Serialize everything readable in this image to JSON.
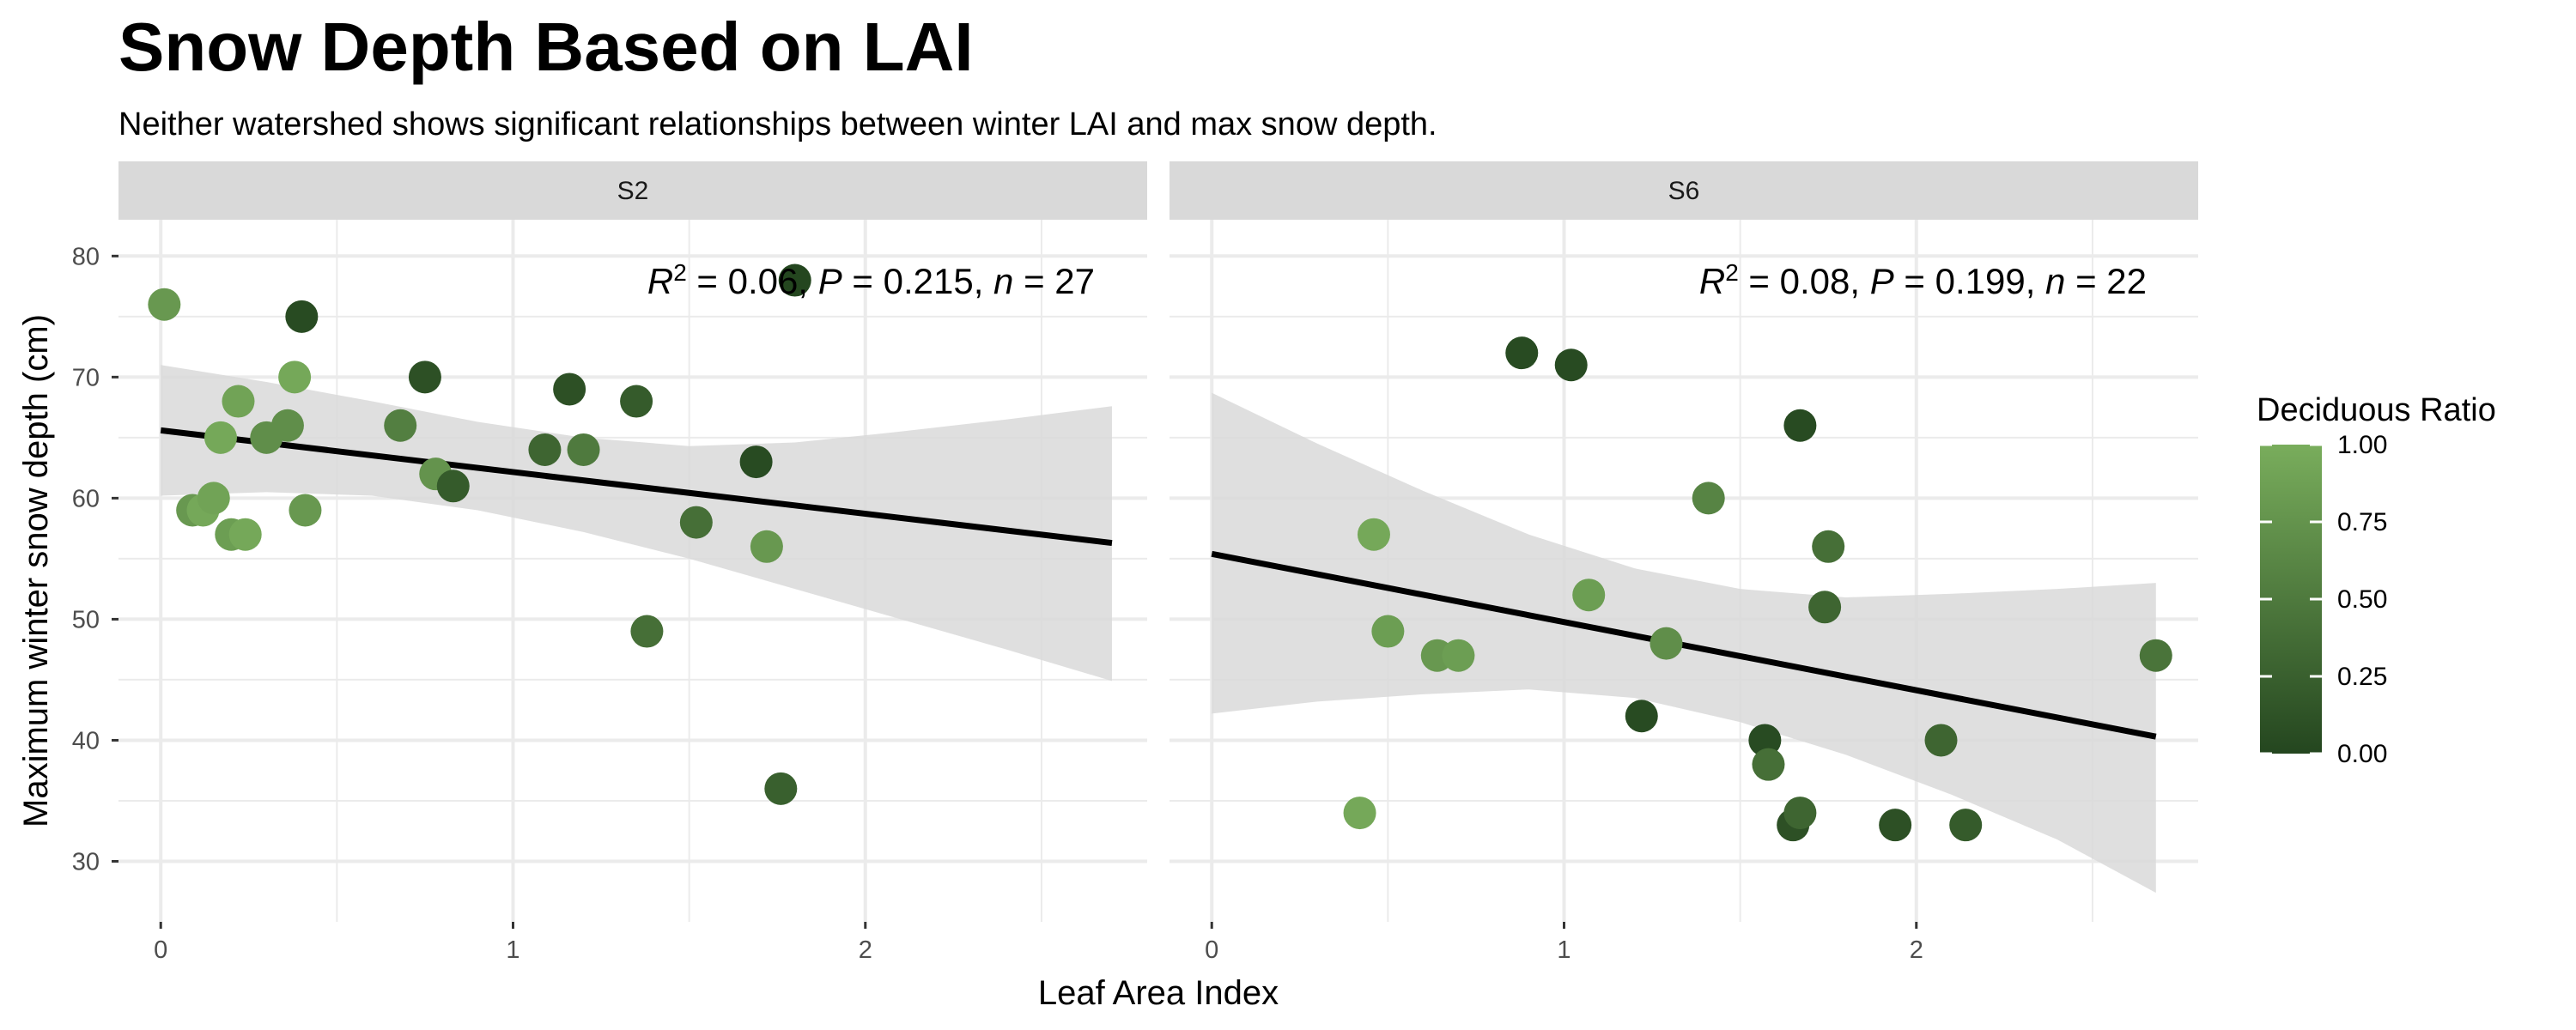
{
  "chart_data": {
    "type": "scatter",
    "title": "Snow Depth Based on LAI",
    "subtitle": "Neither watershed shows significant relationships between winter LAI and max snow depth.",
    "xlabel": "Leaf Area Index",
    "ylabel": "Maximum winter snow depth (cm)",
    "xlim": [
      -0.12,
      2.8
    ],
    "ylim": [
      25,
      83
    ],
    "x_ticks": [
      0,
      1,
      2
    ],
    "y_ticks": [
      30,
      40,
      50,
      60,
      70,
      80
    ],
    "grid": true,
    "legend": {
      "title": "Deciduous Ratio",
      "position": "right",
      "ticks": [
        "1.00",
        "0.75",
        "0.50",
        "0.25",
        "0.00"
      ],
      "range": [
        0,
        1
      ],
      "low_color": "#24461f",
      "high_color": "#79ad5c"
    },
    "colors": {
      "ribbon": "#d9d9d9",
      "fit_line": "#000000",
      "strip_bg": "#d9d9d9",
      "grid": "#ebebeb"
    },
    "panels": [
      {
        "strip": "S2",
        "annotation": {
          "r2_label": "R",
          "r2_sup": "2",
          "r2_value": " = 0.06, ",
          "p_label": "P",
          "p_value": " = 0.215, ",
          "n_label": "n",
          "n_value": " = 27"
        },
        "fit": {
          "x": [
            0,
            2.7
          ],
          "y": [
            65.6,
            56.3
          ]
        },
        "ribbon": {
          "x": [
            0,
            0.3,
            0.6,
            0.9,
            1.2,
            1.5,
            1.8,
            2.1,
            2.4,
            2.7
          ],
          "lower": [
            60.2,
            60.5,
            60.2,
            59.0,
            57.2,
            55.0,
            52.5,
            50.0,
            47.5,
            44.9
          ],
          "upper": [
            71.0,
            69.6,
            68.0,
            66.3,
            65.0,
            64.3,
            64.6,
            65.5,
            66.5,
            67.6
          ]
        },
        "points": [
          {
            "x": 0.01,
            "y": 76,
            "ratio": 0.8
          },
          {
            "x": 0.4,
            "y": 75,
            "ratio": 0.05
          },
          {
            "x": 0.38,
            "y": 70,
            "ratio": 0.95
          },
          {
            "x": 0.22,
            "y": 68,
            "ratio": 0.9
          },
          {
            "x": 0.17,
            "y": 65,
            "ratio": 0.95
          },
          {
            "x": 0.3,
            "y": 65,
            "ratio": 0.7
          },
          {
            "x": 0.36,
            "y": 66,
            "ratio": 0.7
          },
          {
            "x": 0.09,
            "y": 59,
            "ratio": 0.8
          },
          {
            "x": 0.12,
            "y": 59,
            "ratio": 0.95
          },
          {
            "x": 0.15,
            "y": 60,
            "ratio": 0.9
          },
          {
            "x": 0.2,
            "y": 57,
            "ratio": 0.85
          },
          {
            "x": 0.24,
            "y": 57,
            "ratio": 0.95
          },
          {
            "x": 0.41,
            "y": 59,
            "ratio": 0.8
          },
          {
            "x": 0.68,
            "y": 66,
            "ratio": 0.55
          },
          {
            "x": 0.75,
            "y": 70,
            "ratio": 0.1
          },
          {
            "x": 0.78,
            "y": 62,
            "ratio": 0.75
          },
          {
            "x": 0.83,
            "y": 61,
            "ratio": 0.2
          },
          {
            "x": 1.09,
            "y": 64,
            "ratio": 0.3
          },
          {
            "x": 1.16,
            "y": 69,
            "ratio": 0.1
          },
          {
            "x": 1.2,
            "y": 64,
            "ratio": 0.5
          },
          {
            "x": 1.35,
            "y": 68,
            "ratio": 0.2
          },
          {
            "x": 1.38,
            "y": 49,
            "ratio": 0.4
          },
          {
            "x": 1.52,
            "y": 58,
            "ratio": 0.4
          },
          {
            "x": 1.69,
            "y": 63,
            "ratio": 0.05
          },
          {
            "x": 1.72,
            "y": 56,
            "ratio": 0.8
          },
          {
            "x": 1.76,
            "y": 36,
            "ratio": 0.25
          },
          {
            "x": 1.8,
            "y": 78,
            "ratio": 0.0
          }
        ]
      },
      {
        "strip": "S6",
        "annotation": {
          "r2_label": "R",
          "r2_sup": "2",
          "r2_value": " = 0.08, ",
          "p_label": "P",
          "p_value": " = 0.199, ",
          "n_label": "n",
          "n_value": " = 22"
        },
        "fit": {
          "x": [
            0,
            2.68
          ],
          "y": [
            55.4,
            40.3
          ]
        },
        "ribbon": {
          "x": [
            0,
            0.3,
            0.6,
            0.9,
            1.2,
            1.5,
            1.8,
            2.1,
            2.4,
            2.68
          ],
          "lower": [
            42.2,
            43.2,
            43.8,
            44.2,
            43.5,
            41.5,
            38.8,
            35.5,
            31.8,
            27.4
          ],
          "upper": [
            68.7,
            64.5,
            60.6,
            57.0,
            54.2,
            52.5,
            51.8,
            52.1,
            52.5,
            53.0
          ]
        },
        "points": [
          {
            "x": 0.42,
            "y": 34,
            "ratio": 0.95
          },
          {
            "x": 0.46,
            "y": 57,
            "ratio": 0.95
          },
          {
            "x": 0.5,
            "y": 49,
            "ratio": 0.85
          },
          {
            "x": 0.64,
            "y": 47,
            "ratio": 0.8
          },
          {
            "x": 0.7,
            "y": 47,
            "ratio": 0.85
          },
          {
            "x": 0.88,
            "y": 72,
            "ratio": 0.05
          },
          {
            "x": 1.02,
            "y": 71,
            "ratio": 0.05
          },
          {
            "x": 1.07,
            "y": 52,
            "ratio": 0.85
          },
          {
            "x": 1.22,
            "y": 42,
            "ratio": 0.05
          },
          {
            "x": 1.29,
            "y": 48,
            "ratio": 0.7
          },
          {
            "x": 1.41,
            "y": 60,
            "ratio": 0.6
          },
          {
            "x": 1.57,
            "y": 40,
            "ratio": 0.05
          },
          {
            "x": 1.58,
            "y": 38,
            "ratio": 0.4
          },
          {
            "x": 1.65,
            "y": 33,
            "ratio": 0.1
          },
          {
            "x": 1.67,
            "y": 66,
            "ratio": 0.05
          },
          {
            "x": 1.67,
            "y": 34,
            "ratio": 0.3
          },
          {
            "x": 1.74,
            "y": 51,
            "ratio": 0.3
          },
          {
            "x": 1.75,
            "y": 56,
            "ratio": 0.4
          },
          {
            "x": 1.94,
            "y": 33,
            "ratio": 0.1
          },
          {
            "x": 2.07,
            "y": 40,
            "ratio": 0.3
          },
          {
            "x": 2.14,
            "y": 33,
            "ratio": 0.2
          },
          {
            "x": 2.68,
            "y": 47,
            "ratio": 0.45
          }
        ]
      }
    ]
  }
}
